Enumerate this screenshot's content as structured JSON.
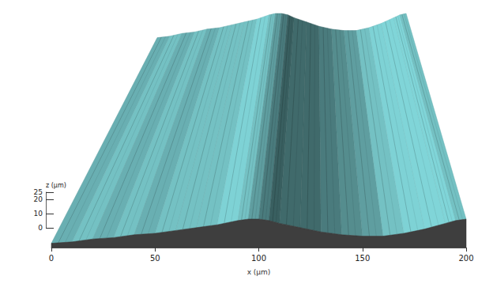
{
  "chart_data": {
    "type": "surface",
    "x": [
      0,
      10,
      20,
      30,
      40,
      50,
      60,
      70,
      80,
      90,
      95,
      100,
      105,
      110,
      120,
      130,
      140,
      150,
      160,
      170,
      180,
      190,
      195,
      200
    ],
    "values": [
      3,
      4,
      6,
      7,
      9,
      10,
      12,
      14,
      16,
      19,
      20,
      20,
      19,
      17,
      14,
      11,
      9,
      8,
      8,
      10,
      13,
      17,
      19,
      20
    ],
    "xlim": [
      0,
      200
    ],
    "xticks": [
      0,
      50,
      100,
      150,
      200
    ],
    "ylim": [
      0,
      25
    ],
    "yticks": [
      0,
      10,
      20
    ],
    "xlabel": "x (µm)",
    "ylabel": "z (µm)",
    "color": "#5f9ea0"
  }
}
